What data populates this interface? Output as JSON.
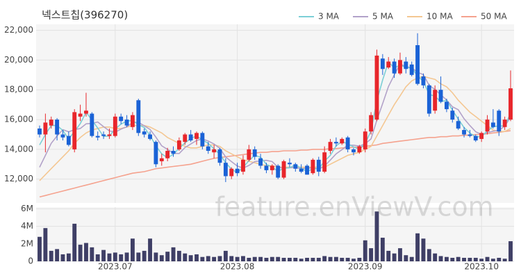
{
  "chart_data": {
    "type": "candlestick",
    "title": "넥스트칩(396270)",
    "watermark": "feature.enViewV.com",
    "categories": [
      null,
      null,
      null,
      null,
      null,
      null,
      null,
      null,
      null,
      null,
      null,
      null,
      null,
      "2023.07",
      null,
      null,
      null,
      null,
      null,
      null,
      null,
      null,
      null,
      null,
      null,
      null,
      null,
      null,
      null,
      null,
      null,
      null,
      null,
      null,
      "2023.08",
      null,
      null,
      null,
      null,
      null,
      null,
      null,
      null,
      null,
      null,
      null,
      null,
      null,
      null,
      null,
      null,
      null,
      null,
      null,
      null,
      null,
      "2023.09",
      null,
      null,
      null,
      null,
      null,
      null,
      null,
      null,
      null,
      null,
      null,
      null,
      null,
      null,
      null,
      null,
      null,
      null,
      null,
      "2023.10",
      null,
      null,
      null,
      null,
      null
    ],
    "open": [
      15400,
      15000,
      15600,
      16000,
      15000,
      14900,
      14000,
      16200,
      16400,
      16400,
      14900,
      15000,
      14900,
      14900,
      16200,
      16000,
      15500,
      17300,
      15200,
      15000,
      14500,
      13200,
      13400,
      13900,
      14000,
      14500,
      15000,
      14700,
      15100,
      14200,
      13800,
      14000,
      13100,
      12200,
      12700,
      12500,
      13300,
      14000,
      13400,
      12900,
      12600,
      12900,
      12100,
      13100,
      13000,
      12700,
      12900,
      12400,
      13300,
      12500,
      13900,
      14500,
      14400,
      14800,
      14000,
      13800,
      14000,
      15200,
      16000,
      20100,
      19500,
      19900,
      19100,
      19900,
      19700,
      21000,
      18900,
      18300,
      16600,
      18000,
      17200,
      16600,
      15900,
      15300,
      15000,
      14900,
      14700,
      15200,
      15800,
      16600,
      15500,
      16000
    ],
    "high": [
      15600,
      16400,
      16200,
      16100,
      15300,
      15200,
      16700,
      17000,
      17800,
      16500,
      15200,
      15200,
      15400,
      16400,
      16400,
      16300,
      16500,
      17400,
      15400,
      15200,
      14600,
      13700,
      14100,
      14200,
      14800,
      15100,
      15300,
      15200,
      15200,
      14500,
      14300,
      14100,
      13400,
      12800,
      13100,
      13600,
      14300,
      14200,
      13700,
      13100,
      13000,
      13000,
      13300,
      13400,
      13100,
      13000,
      13000,
      13400,
      13500,
      14200,
      14700,
      14800,
      14800,
      14900,
      14100,
      14300,
      15400,
      16500,
      20700,
      20400,
      20200,
      20100,
      20500,
      20200,
      19900,
      21800,
      19100,
      18400,
      18300,
      18900,
      17400,
      16800,
      16200,
      15500,
      15300,
      15000,
      15200,
      16300,
      16700,
      16700,
      16200,
      19300
    ],
    "low": [
      14800,
      13800,
      15400,
      14600,
      14600,
      14200,
      13800,
      15900,
      16200,
      14800,
      14600,
      14700,
      14700,
      14800,
      15700,
      15500,
      15300,
      14900,
      14800,
      14600,
      12800,
      12900,
      13200,
      13500,
      13900,
      14300,
      14500,
      14300,
      14000,
      13700,
      13400,
      12900,
      11800,
      12000,
      12200,
      12300,
      13200,
      13300,
      12700,
      12400,
      12300,
      12000,
      12000,
      12800,
      12500,
      12400,
      12300,
      12300,
      12200,
      12400,
      13700,
      14200,
      14300,
      13800,
      13600,
      13700,
      13800,
      15000,
      15900,
      19000,
      19400,
      18800,
      19000,
      19100,
      18900,
      18300,
      18100,
      16200,
      16400,
      17100,
      16500,
      15800,
      15300,
      14800,
      14800,
      14500,
      14500,
      15000,
      15400,
      14900,
      15300,
      15900
    ],
    "close": [
      15000,
      15800,
      16000,
      15000,
      14800,
      14300,
      16500,
      16400,
      16600,
      14900,
      14800,
      14900,
      15000,
      16200,
      15900,
      15600,
      16300,
      15100,
      15000,
      14700,
      13000,
      13400,
      13900,
      13700,
      14600,
      15000,
      14600,
      15100,
      14200,
      13900,
      14000,
      13100,
      12200,
      12700,
      12400,
      13300,
      14000,
      13500,
      12900,
      12600,
      12900,
      12100,
      13200,
      13000,
      12700,
      12500,
      12300,
      13300,
      12500,
      13800,
      14500,
      14400,
      14700,
      14000,
      13800,
      14200,
      15200,
      16300,
      20300,
      19400,
      19900,
      19100,
      20000,
      19400,
      19000,
      18400,
      18300,
      16400,
      18000,
      17200,
      16700,
      16000,
      15400,
      15000,
      14900,
      14600,
      15100,
      16000,
      15500,
      15200,
      16000,
      18100
    ],
    "up_color": "#e8262b",
    "down_color": "#1a62d6",
    "ylim": [
      10400,
      22400
    ],
    "yticks": [
      {
        "value": 12000,
        "label": "12,000"
      },
      {
        "value": 14000,
        "label": "14,000"
      },
      {
        "value": 16000,
        "label": "16,000"
      },
      {
        "value": 18000,
        "label": "18,000"
      },
      {
        "value": 20000,
        "label": "20,000"
      },
      {
        "value": 22000,
        "label": "22,000"
      }
    ],
    "grid": true,
    "legend": "top-right",
    "series": [
      {
        "name": "3 MA",
        "color": "#7ccfd6",
        "values": [
          14300,
          15000,
          15600,
          15600,
          15267,
          14700,
          15200,
          15733,
          16500,
          15967,
          15433,
          14867,
          14900,
          15367,
          15700,
          15900,
          15933,
          15667,
          15467,
          14933,
          14233,
          13700,
          13433,
          13667,
          14067,
          14433,
          14733,
          14900,
          14633,
          14400,
          14033,
          13667,
          13100,
          12667,
          12433,
          12800,
          13233,
          13600,
          13467,
          13000,
          12800,
          12533,
          12733,
          12767,
          12967,
          12733,
          12500,
          12700,
          12700,
          13200,
          13600,
          14233,
          14533,
          14367,
          14167,
          14000,
          14400,
          15233,
          17267,
          18667,
          19867,
          19467,
          19667,
          19500,
          19467,
          18933,
          18567,
          17700,
          17567,
          17200,
          17300,
          16633,
          16033,
          15467,
          15100,
          14833,
          14867,
          15233,
          15533,
          15567,
          15567,
          16433
        ]
      },
      {
        "name": "5 MA",
        "color": "#b2a2c9",
        "values": [
          12800,
          13600,
          14400,
          14900,
          15320,
          15180,
          15320,
          15400,
          15720,
          15740,
          15840,
          15520,
          15240,
          15160,
          15360,
          15520,
          15800,
          15820,
          15580,
          15340,
          14820,
          14240,
          14000,
          13740,
          13720,
          14120,
          14360,
          14600,
          14700,
          14560,
          14360,
          14060,
          13480,
          13180,
          12880,
          12740,
          12920,
          13180,
          13220,
          13260,
          13180,
          12800,
          12740,
          12760,
          12780,
          12700,
          12740,
          12760,
          12660,
          12880,
          13280,
          13700,
          13980,
          14280,
          14280,
          14220,
          14380,
          14700,
          15960,
          17080,
          18220,
          19000,
          19740,
          19560,
          19480,
          19180,
          19020,
          18300,
          18020,
          17660,
          17320,
          16860,
          16660,
          16060,
          15600,
          15180,
          15000,
          15120,
          15220,
          15280,
          15560,
          16160
        ]
      },
      {
        "name": "10 MA",
        "color": "#f4c792",
        "values": [
          11900,
          12300,
          12700,
          13100,
          13500,
          13900,
          14400,
          14800,
          15100,
          15300,
          15400,
          15500,
          15500,
          15400,
          15400,
          15500,
          15600,
          15600,
          15600,
          15500,
          15300,
          15100,
          14800,
          14600,
          14400,
          14200,
          14100,
          14100,
          14200,
          14300,
          14300,
          14200,
          13900,
          13700,
          13500,
          13300,
          13200,
          13100,
          13000,
          12900,
          12900,
          12800,
          12800,
          12800,
          12800,
          12800,
          12800,
          12800,
          12800,
          12800,
          13000,
          13200,
          13400,
          13600,
          13700,
          13800,
          14000,
          14200,
          14900,
          15600,
          16300,
          17000,
          17600,
          18200,
          18600,
          18800,
          18900,
          18800,
          18700,
          18400,
          18200,
          17800,
          17300,
          16900,
          16500,
          16200,
          15900,
          15600,
          15300,
          15200,
          15200,
          15400
        ]
      },
      {
        "name": "50 MA",
        "color": "#f5a28e",
        "values": [
          10800,
          10900,
          11000,
          11100,
          11200,
          11300,
          11400,
          11500,
          11600,
          11700,
          11800,
          11900,
          12000,
          12100,
          12200,
          12300,
          12400,
          12450,
          12500,
          12600,
          12700,
          12750,
          12800,
          12850,
          12900,
          12950,
          13000,
          13100,
          13200,
          13300,
          13400,
          13450,
          13500,
          13550,
          13600,
          13650,
          13700,
          13750,
          13800,
          13800,
          13850,
          13850,
          13900,
          13900,
          13900,
          13950,
          13950,
          14000,
          14000,
          14000,
          14050,
          14050,
          14100,
          14100,
          14150,
          14150,
          14200,
          14250,
          14300,
          14400,
          14450,
          14500,
          14550,
          14600,
          14650,
          14700,
          14750,
          14800,
          14800,
          14850,
          14850,
          14900,
          14900,
          14950,
          14950,
          15000,
          15000,
          15050,
          15100,
          15150,
          15200,
          15250
        ]
      }
    ],
    "volume": {
      "color": "#3f3f66",
      "ylim": [
        0,
        6200000
      ],
      "yticks": [
        0,
        {
          "value": 2000000,
          "label": "2M"
        },
        {
          "value": 4000000,
          "label": "4M"
        },
        {
          "value": 6000000,
          "label": "6M"
        }
      ],
      "values": [
        2800000,
        3800000,
        1200000,
        1400000,
        800000,
        900000,
        4300000,
        1900000,
        2100000,
        1600000,
        800000,
        1300000,
        900000,
        1000000,
        800000,
        1000000,
        2600000,
        1000000,
        1200000,
        2600000,
        1000000,
        700000,
        1100000,
        1600000,
        1200000,
        900000,
        700000,
        800000,
        500000,
        600000,
        500000,
        600000,
        1200000,
        600000,
        500000,
        600000,
        400000,
        500000,
        500000,
        400000,
        500000,
        500000,
        400000,
        400000,
        400000,
        300000,
        400000,
        400000,
        400000,
        600000,
        500000,
        500000,
        400000,
        400000,
        300000,
        400000,
        2400000,
        1500000,
        5700000,
        2700000,
        1200000,
        900000,
        1500000,
        700000,
        500000,
        3200000,
        2600000,
        1400000,
        900000,
        600000,
        500000,
        400000,
        500000,
        400000,
        400000,
        400000,
        300000,
        500000,
        300000,
        400000,
        300000,
        2300000
      ]
    }
  }
}
